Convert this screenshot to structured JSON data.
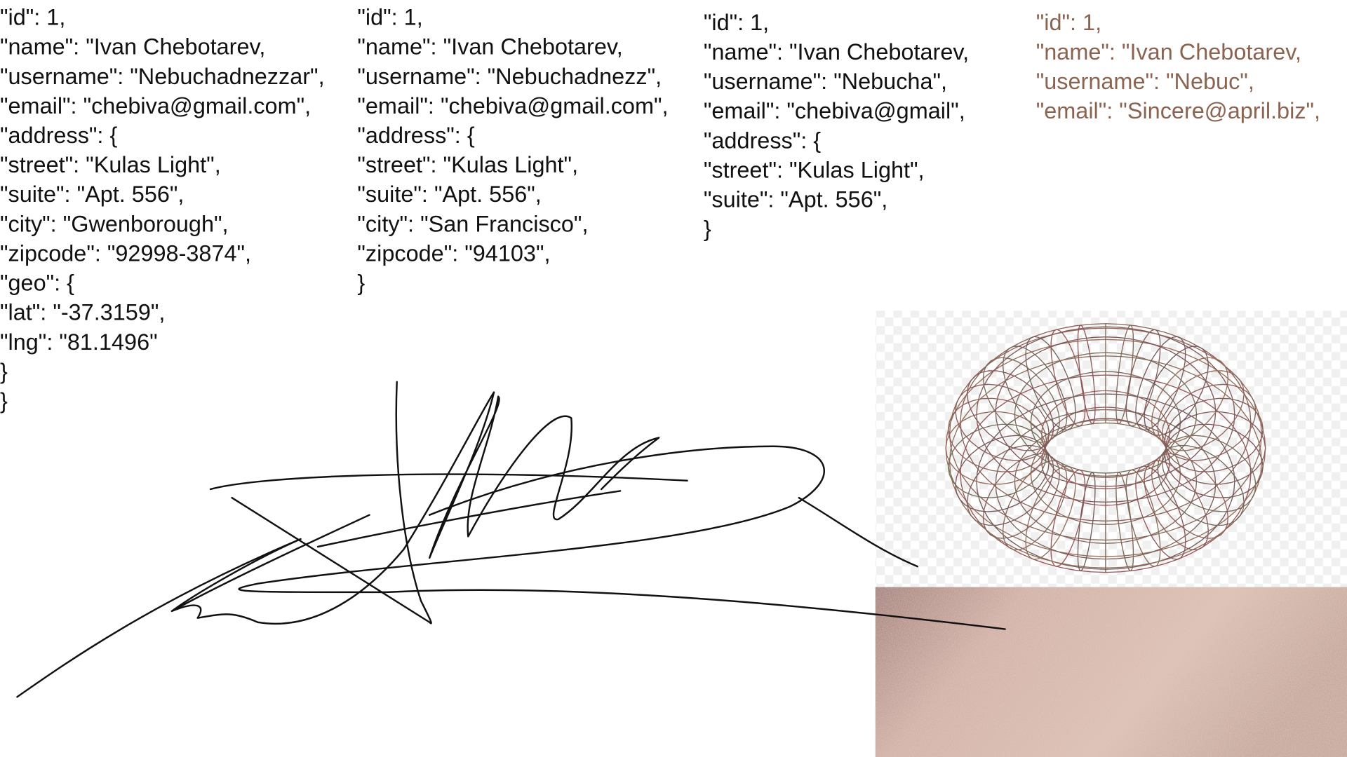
{
  "columns": [
    {
      "lines": [
        "\"id\": 1,",
        "\"name\": \"Ivan Chebotarev,",
        "\"username\": \"Nebuchadnezzar\",",
        "\"email\": \"chebiva@gmail.com\",",
        "\"address\": {",
        "\"street\": \"Kulas Light\",",
        "\"suite\": \"Apt. 556\",",
        "\"city\": \"Gwenborough\",",
        "\"zipcode\": \"92998-3874\",",
        "\"geo\": {",
        "\"lat\": \"-37.3159\",",
        "\"lng\": \"81.1496\"",
        "}",
        "}"
      ]
    },
    {
      "lines": [
        "\"id\": 1,",
        "\"name\": \"Ivan Chebotarev,",
        "\"username\": \"Nebuchadnezz\",",
        "\"email\": \"chebiva@gmail.com\",",
        "\"address\": {",
        "\"street\": \"Kulas Light\",",
        "\"suite\": \"Apt. 556\",",
        "\"city\": \"San Francisco\",",
        "\"zipcode\": \"94103\",",
        "}"
      ]
    },
    {
      "lines": [
        "\"id\": 1,",
        "\"name\": \"Ivan Chebotarev,",
        "\"username\": \"Nebucha\",",
        "\"email\": \"chebiva@gmail\",",
        "\"address\": {",
        "\"street\": \"Kulas Light\",",
        "\"suite\": \"Apt. 556\",",
        "}"
      ]
    },
    {
      "lines": [
        "\"id\": 1,",
        "\"name\": \"Ivan Chebotarev,",
        "\"username\": \"Nebuc\",",
        "\"email\": \"Sincere@april.biz\","
      ]
    }
  ]
}
